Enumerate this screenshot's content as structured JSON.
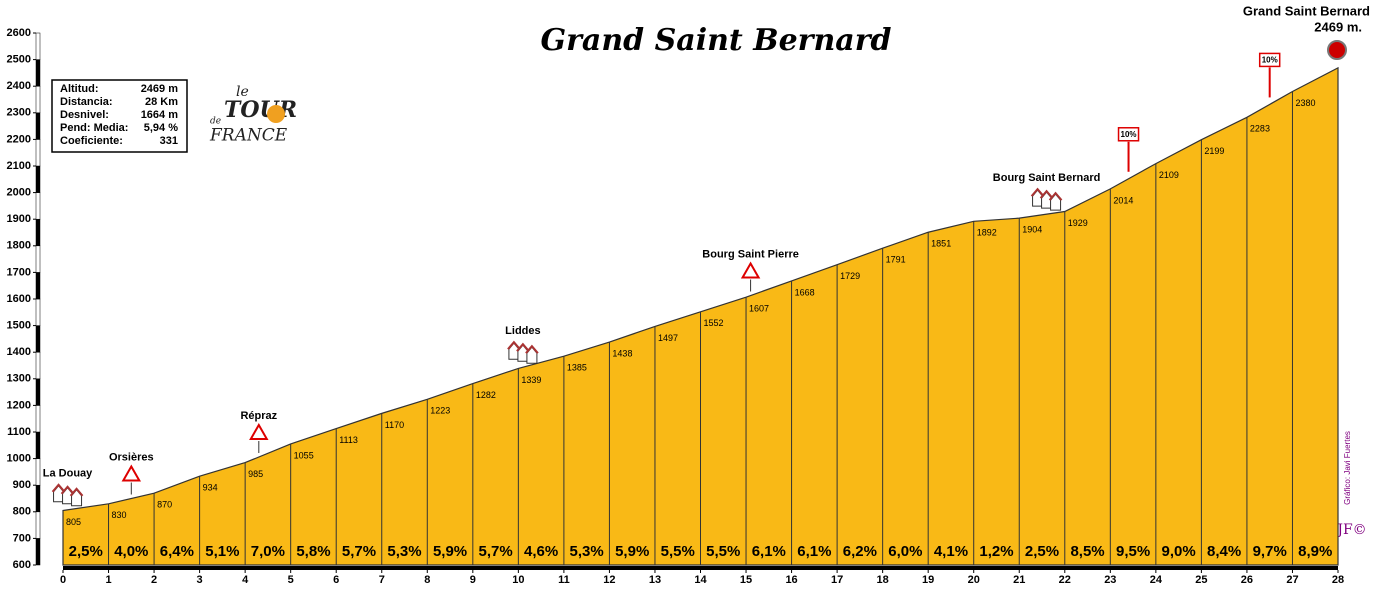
{
  "chart_data": {
    "type": "area",
    "title": "Grand Saint Bernard",
    "summit_name": "Grand Saint Bernard",
    "summit_label": "2469 m.",
    "x": [
      0,
      1,
      2,
      3,
      4,
      5,
      6,
      7,
      8,
      9,
      10,
      11,
      12,
      13,
      14,
      15,
      16,
      17,
      18,
      19,
      20,
      21,
      22,
      23,
      24,
      25,
      26,
      27,
      28
    ],
    "values": [
      805,
      830,
      870,
      934,
      985,
      1055,
      1113,
      1170,
      1223,
      1282,
      1339,
      1385,
      1438,
      1497,
      1552,
      1607,
      1668,
      1729,
      1791,
      1851,
      1892,
      1904,
      1929,
      2014,
      2109,
      2199,
      2283,
      2380,
      2469
    ],
    "color": "#f9b916",
    "gradients": {
      "values": [
        2.5,
        4.0,
        6.4,
        5.1,
        7.0,
        5.8,
        5.7,
        5.3,
        5.9,
        5.7,
        4.6,
        5.3,
        5.9,
        5.5,
        5.5,
        6.1,
        6.1,
        6.2,
        6.0,
        4.1,
        1.2,
        2.5,
        8.5,
        9.5,
        9.0,
        8.4,
        9.7,
        8.9
      ],
      "value_labels": [
        "2,5%",
        "4,0%",
        "6,4%",
        "5,1%",
        "7,0%",
        "5,8%",
        "5,7%",
        "5,3%",
        "5,9%",
        "5,7%",
        "4,6%",
        "5,3%",
        "5,9%",
        "5,5%",
        "5,5%",
        "6,1%",
        "6,1%",
        "6,2%",
        "6,0%",
        "4,1%",
        "1,2%",
        "2,5%",
        "8,5%",
        "9,5%",
        "9,0%",
        "8,4%",
        "9,7%",
        "8,9%"
      ]
    },
    "xlim": [
      0,
      28
    ],
    "xticks": [
      0,
      1,
      2,
      3,
      4,
      5,
      6,
      7,
      8,
      9,
      10,
      11,
      12,
      13,
      14,
      15,
      16,
      17,
      18,
      19,
      20,
      21,
      22,
      23,
      24,
      25,
      26,
      27,
      28
    ],
    "ylim": [
      600,
      2600
    ],
    "yticks": [
      600,
      700,
      800,
      900,
      1000,
      1100,
      1200,
      1300,
      1400,
      1500,
      1600,
      1700,
      1800,
      1900,
      2000,
      2100,
      2200,
      2300,
      2400,
      2500,
      2600
    ],
    "places": [
      {
        "name": "La Douay",
        "x": 0.1,
        "icon": "town"
      },
      {
        "name": "Orsières",
        "x": 1.5,
        "icon": "warning"
      },
      {
        "name": "Répraz",
        "x": 4.3,
        "icon": "warning"
      },
      {
        "name": "Liddes",
        "x": 10.1,
        "icon": "town"
      },
      {
        "name": "Bourg Saint Pierre",
        "x": 15.1,
        "icon": "warning"
      },
      {
        "name": "Bourg Saint Bernard",
        "x": 21.6,
        "icon": "town"
      }
    ],
    "markers": [
      {
        "label": "10%",
        "x": 23.4
      },
      {
        "label": "10%",
        "x": 26.5
      }
    ],
    "info": [
      {
        "label": "Altitud:",
        "value": "2469 m"
      },
      {
        "label": "Distancia:",
        "value": "28 Km"
      },
      {
        "label": "Desnivel:",
        "value": "1664 m"
      },
      {
        "label": "Pend: Media:",
        "value": "5,94 %"
      },
      {
        "label": "Coeficiente:",
        "value": "331"
      }
    ],
    "logo": [
      "le",
      "TOUR",
      "de",
      "FRANCE"
    ],
    "credit": "Gráfico: Javi Fuertes",
    "signature": "JF©"
  }
}
